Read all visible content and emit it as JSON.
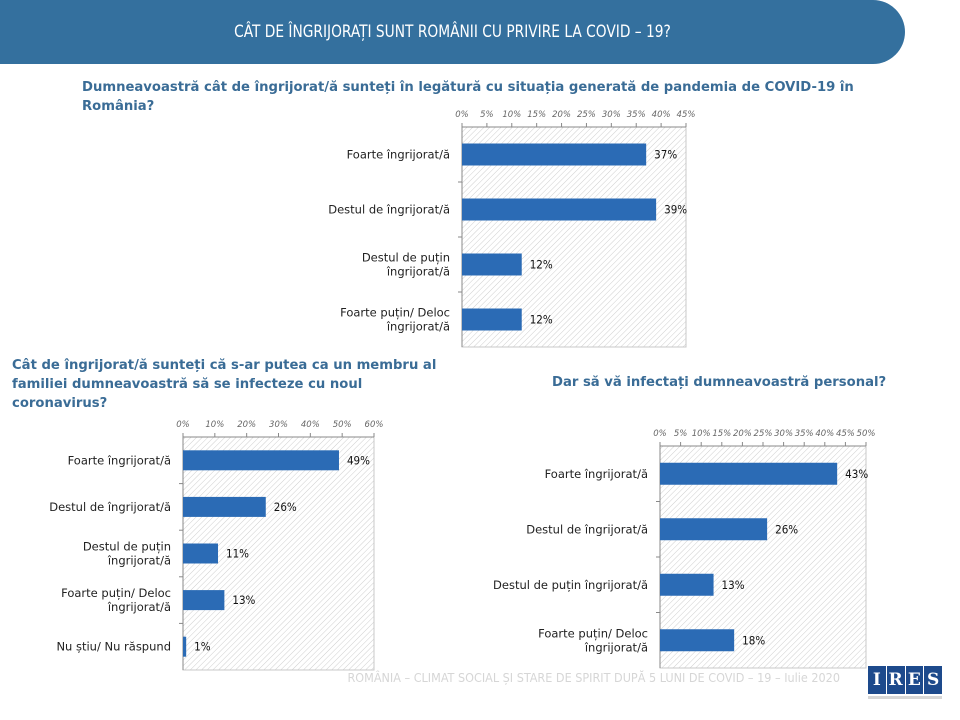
{
  "header": {
    "title": "CÂT DE ÎNGRIJORAȚI SUNT ROMÂNII CU PRIVIRE LA COVID – 19?",
    "accent_color": "#34709e"
  },
  "footer": {
    "text": "ROMÂNIA – CLIMAT SOCIAL ȘI STARE DE SPIRIT DUPĂ 5 LUNI DE COVID – 19 – Iulie 2020",
    "logo_letters": [
      "I",
      "R",
      "E",
      "S"
    ]
  },
  "chart_data": [
    {
      "type": "bar",
      "orientation": "horizontal",
      "title": "Dumneavoastră cât de îngrijorat/ă sunteți în legătură cu situația generată de pandemia de COVID-19 în România?",
      "categories": [
        [
          "Foarte îngrijorat/ă"
        ],
        [
          "Destul de îngrijorat/ă"
        ],
        [
          "Destul de puțin",
          "îngrijorat/ă"
        ],
        [
          "Foarte puțin/  Deloc",
          "îngrijorat/ă"
        ]
      ],
      "values": [
        37,
        39,
        12,
        12
      ],
      "labels": [
        "37%",
        "39%",
        "12%",
        "12%"
      ],
      "xlim": [
        0,
        45
      ],
      "ticks": [
        "0%",
        "5%",
        "10%",
        "15%",
        "20%",
        "25%",
        "30%",
        "35%",
        "40%",
        "45%"
      ],
      "tick_step": 5,
      "bar_color": "#2b6bb5",
      "axis_position": "top",
      "grid": false
    },
    {
      "type": "bar",
      "orientation": "horizontal",
      "title": "Cât de îngrijorat/ă sunteți că s-ar putea ca un membru al familiei dumneavoastră să se infecteze cu noul coronavirus?",
      "categories": [
        [
          "Foarte îngrijorat/ă"
        ],
        [
          "Destul de îngrijorat/ă"
        ],
        [
          "Destul de puțin",
          "îngrijorat/ă"
        ],
        [
          "Foarte puțin/  Deloc",
          "îngrijorat/ă"
        ],
        [
          "Nu știu/ Nu răspund"
        ]
      ],
      "values": [
        49,
        26,
        11,
        13,
        1
      ],
      "labels": [
        "49%",
        "26%",
        "11%",
        "13%",
        "1%"
      ],
      "xlim": [
        0,
        60
      ],
      "ticks": [
        "0%",
        "10%",
        "20%",
        "30%",
        "40%",
        "50%",
        "60%"
      ],
      "tick_step": 10,
      "bar_color": "#2b6bb5",
      "axis_position": "top",
      "grid": false
    },
    {
      "type": "bar",
      "orientation": "horizontal",
      "title": "Dar să vă infectați dumneavoastră personal?",
      "categories": [
        [
          "Foarte îngrijorat/ă"
        ],
        [
          "Destul de îngrijorat/ă"
        ],
        [
          "Destul de puțin îngrijorat/ă"
        ],
        [
          "Foarte puțin/  Deloc",
          "îngrijorat/ă"
        ]
      ],
      "values": [
        43,
        26,
        13,
        18
      ],
      "labels": [
        "43%",
        "26%",
        "13%",
        "18%"
      ],
      "xlim": [
        0,
        50
      ],
      "ticks": [
        "0%",
        "5%",
        "10%",
        "15%",
        "20%",
        "25%",
        "30%",
        "35%",
        "40%",
        "45%",
        "50%"
      ],
      "tick_step": 5,
      "bar_color": "#2b6bb5",
      "axis_position": "top",
      "grid": false
    }
  ]
}
